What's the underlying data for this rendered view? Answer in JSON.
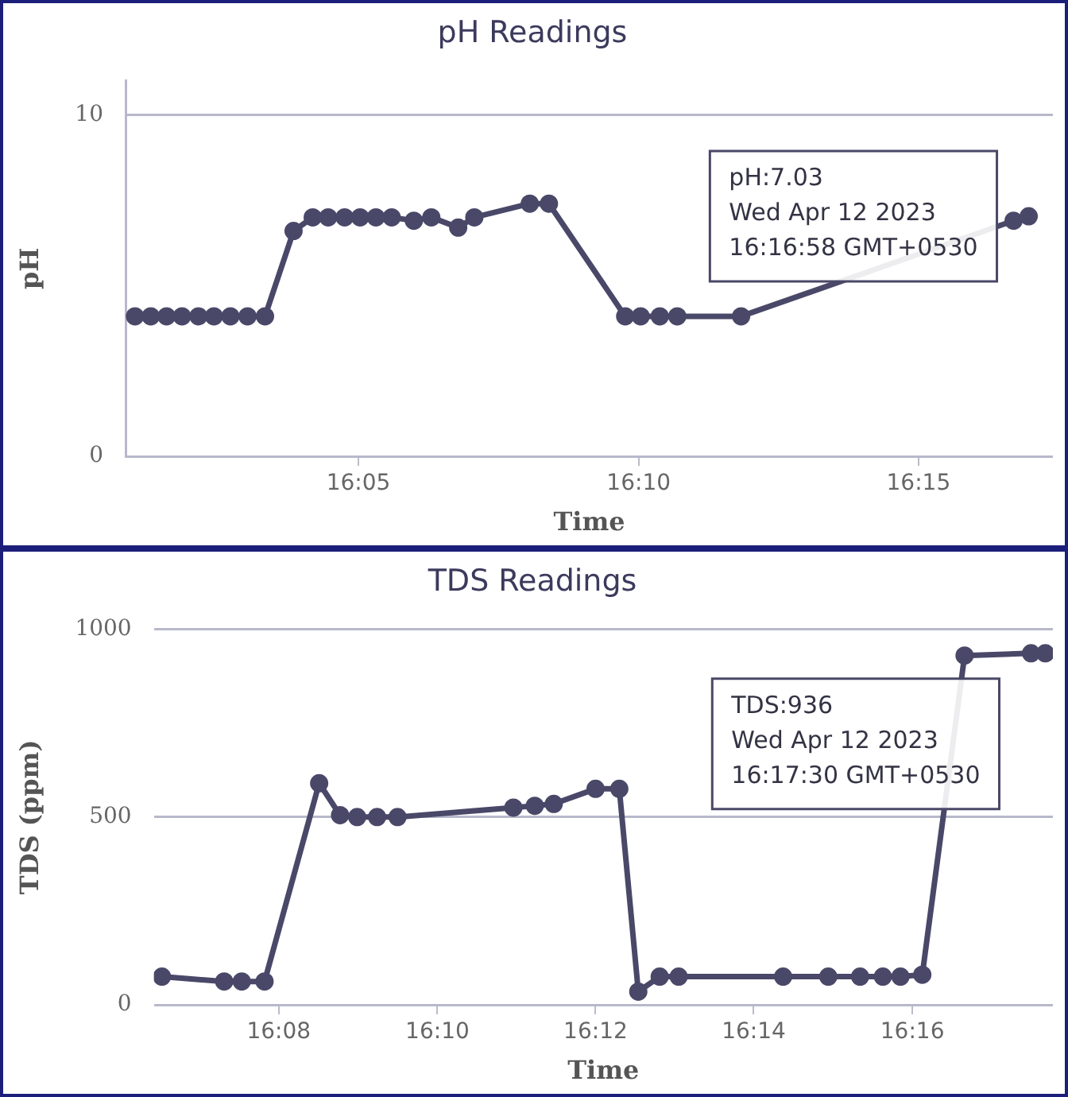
{
  "chart_data": [
    {
      "type": "line",
      "title": "pH Readings",
      "xlabel": "Time",
      "ylabel": "pH",
      "xlim": [
        16.014,
        16.29
      ],
      "xticks": [
        {
          "value": 16.0833,
          "label": "16:05"
        },
        {
          "value": 16.1667,
          "label": "16:10"
        },
        {
          "value": 16.25,
          "label": "16:15"
        }
      ],
      "ylim": [
        0,
        11
      ],
      "yticks": [
        0,
        10
      ],
      "grid": "y",
      "legend": false,
      "marker": "circle",
      "line_style": "solid",
      "series": [
        {
          "color": "#4a4868",
          "x": [
            16.0168,
            16.0215,
            16.0262,
            16.0308,
            16.0357,
            16.0403,
            16.0452,
            16.0503,
            16.0555,
            16.064,
            16.0697,
            16.0743,
            16.0792,
            16.0838,
            16.0885,
            16.0932,
            16.0998,
            16.105,
            16.113,
            16.1178,
            16.1343,
            16.14,
            16.1627,
            16.1673,
            16.173,
            16.1782,
            16.1972,
            16.2263,
            16.2783,
            16.2828
          ],
          "values": [
            4.1,
            4.1,
            4.1,
            4.1,
            4.1,
            4.1,
            4.1,
            4.1,
            4.1,
            6.6,
            7.0,
            7.0,
            7.0,
            7.0,
            7.0,
            7.0,
            6.9,
            7.0,
            6.7,
            7.0,
            7.4,
            7.4,
            4.1,
            4.1,
            4.1,
            4.1,
            4.1,
            null,
            6.9,
            7.03
          ]
        }
      ],
      "annotations": [
        {
          "text": "pH:7.03\nWed Apr 12 2023\n16:16:58 GMT+0530",
          "x": 16.2828,
          "y": 7.03
        }
      ]
    },
    {
      "type": "line",
      "title": "TDS Readings",
      "xlabel": "Time",
      "ylabel": "TDS (ppm)",
      "xlim": [
        16.107,
        16.2963
      ],
      "xticks": [
        {
          "value": 16.1333,
          "label": "16:08"
        },
        {
          "value": 16.1667,
          "label": "16:10"
        },
        {
          "value": 16.2,
          "label": "16:12"
        },
        {
          "value": 16.2333,
          "label": "16:14"
        },
        {
          "value": 16.2667,
          "label": "16:16"
        }
      ],
      "ylim": [
        0,
        1000
      ],
      "yticks": [
        0,
        500,
        1000
      ],
      "grid": "y",
      "legend": false,
      "marker": "circle",
      "line_style": "solid",
      "series": [
        {
          "color": "#4a4868",
          "x": [
            16.1087,
            16.1218,
            16.1255,
            16.1303,
            16.1418,
            16.1462,
            16.1498,
            16.154,
            16.1583,
            16.1827,
            16.1872,
            16.1912,
            16.2,
            16.205,
            16.209,
            16.2135,
            16.2175,
            16.2395,
            16.249,
            16.2557,
            16.2605,
            16.2642,
            16.2688,
            16.2777,
            16.2917,
            16.2947
          ],
          "values": [
            75,
            62,
            62,
            62,
            590,
            505,
            500,
            500,
            500,
            525,
            530,
            535,
            575,
            575,
            35,
            75,
            75,
            75,
            75,
            75,
            75,
            75,
            80,
            930,
            936,
            936
          ]
        }
      ],
      "annotations": [
        {
          "text": "TDS:936\nWed Apr 12 2023\n16:17:30 GMT+0530",
          "x": 16.2917,
          "y": 936
        }
      ]
    }
  ]
}
